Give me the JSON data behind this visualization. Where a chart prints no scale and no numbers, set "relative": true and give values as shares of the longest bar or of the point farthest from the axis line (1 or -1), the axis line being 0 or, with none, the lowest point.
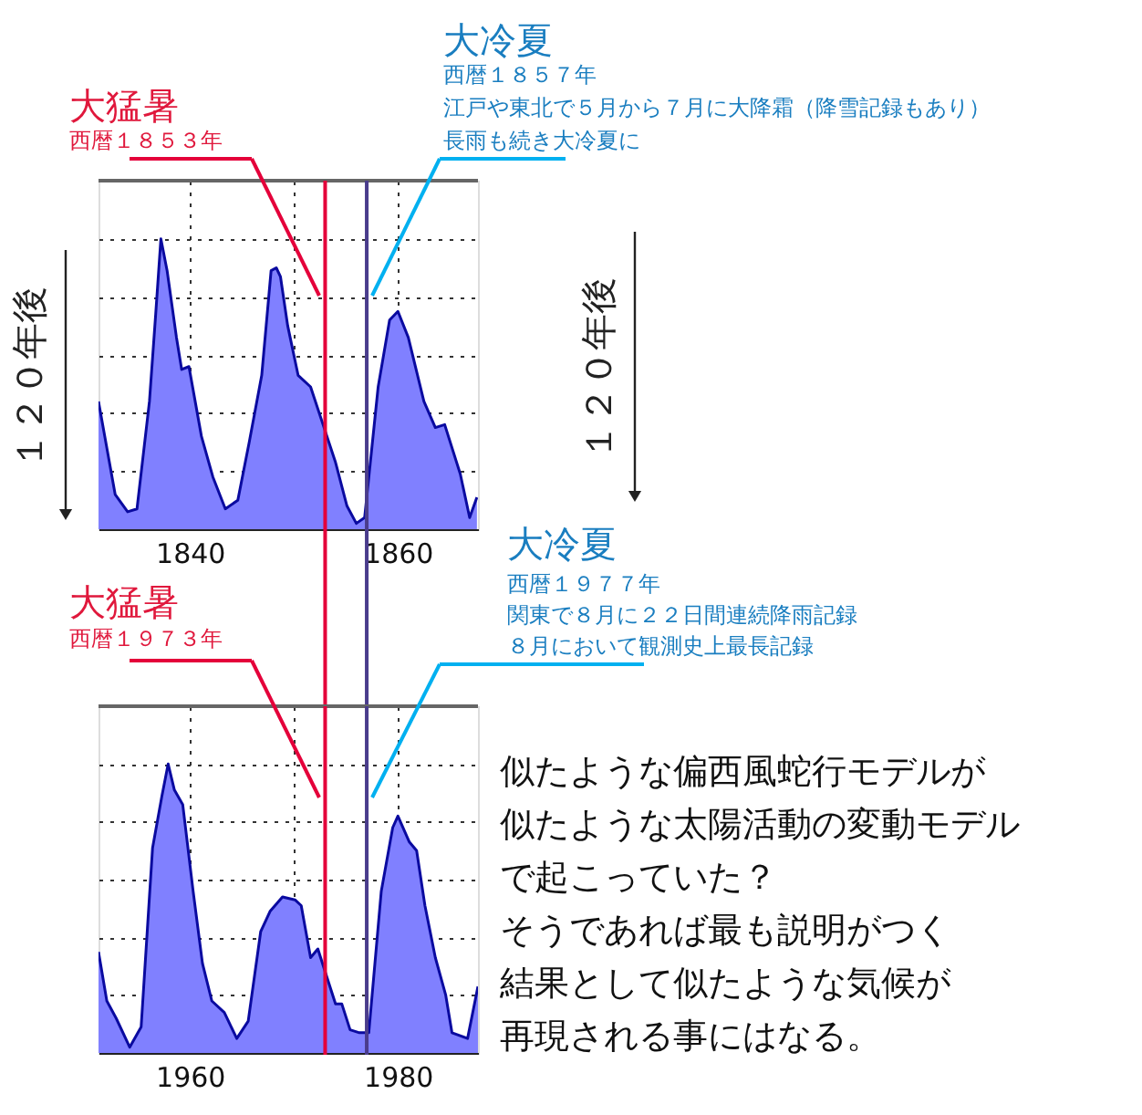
{
  "chart_data": [
    {
      "type": "area",
      "relative": true,
      "grid": true,
      "x": [
        1831.2,
        1832.8,
        1834.0,
        1834.9,
        1836.1,
        1836.7,
        1837.2,
        1837.8,
        1838.7,
        1839.2,
        1839.9,
        1841.1,
        1842.2,
        1843.4,
        1844.6,
        1845.7,
        1846.9,
        1847.8,
        1848.3,
        1848.7,
        1849.4,
        1850.4,
        1851.6,
        1852.8,
        1854.0,
        1855.1,
        1856.0,
        1856.8,
        1858.1,
        1859.2,
        1860.0,
        1861.0,
        1862.5,
        1863.6,
        1864.5,
        1866.0,
        1866.9,
        1867.6
      ],
      "series": [
        {
          "color": "#8080ff",
          "values": [
            0.44,
            0.12,
            0.06,
            0.07,
            0.44,
            0.74,
            1,
            0.89,
            0.66,
            0.55,
            0.56,
            0.32,
            0.18,
            0.07,
            0.1,
            0.3,
            0.53,
            0.89,
            0.9,
            0.87,
            0.7,
            0.53,
            0.49,
            0.36,
            0.23,
            0.08,
            0.02,
            0.04,
            0.49,
            0.72,
            0.75,
            0.66,
            0.44,
            0.35,
            0.36,
            0.19,
            0.04,
            0.11
          ]
        }
      ],
      "xlim": [
        1831.2,
        1867.7
      ],
      "xticks": [
        1840,
        {
          "value": 1850,
          "label": null
        },
        1860
      ],
      "ref_lines": [
        {
          "axis": "x",
          "value": 1853,
          "color": "#e4003a"
        },
        {
          "axis": "x",
          "value": 1857,
          "color": "#4a3c8c"
        }
      ],
      "annotations": [
        "大猛暑",
        "西暦１８５３年",
        "大冷夏",
        "西暦１８５７年",
        "江戸や東北で５月から７月に大降霜（降雪記録もあり）",
        "長雨も続き大冷夏に",
        "１２０年後",
        "１２０年後"
      ]
    },
    {
      "type": "area",
      "relative": true,
      "grid": true,
      "x": [
        1951.2,
        1952.0,
        1952.9,
        1954.2,
        1955.3,
        1956.4,
        1957.3,
        1957.9,
        1958.5,
        1959.3,
        1960.3,
        1961.2,
        1962.1,
        1963.3,
        1964.5,
        1965.6,
        1966.8,
        1967.7,
        1968.9,
        1970.1,
        1970.7,
        1971.6,
        1972.3,
        1973.1,
        1974.0,
        1974.6,
        1975.4,
        1976.3,
        1977.2,
        1978.4,
        1979.5,
        1980.0,
        1981.1,
        1981.8,
        1982.6,
        1983.6,
        1984.6,
        1985.2,
        1986.7,
        1987.7
      ],
      "series": [
        {
          "color": "#8080ff",
          "values": [
            0.35,
            0.18,
            0.12,
            0.02,
            0.09,
            0.71,
            0.89,
            1,
            0.91,
            0.86,
            0.56,
            0.31,
            0.18,
            0.14,
            0.05,
            0.11,
            0.42,
            0.49,
            0.54,
            0.53,
            0.51,
            0.33,
            0.36,
            0.27,
            0.17,
            0.17,
            0.08,
            0.07,
            0.07,
            0.56,
            0.78,
            0.82,
            0.73,
            0.7,
            0.51,
            0.33,
            0.2,
            0.07,
            0.05,
            0.23
          ]
        }
      ],
      "xlim": [
        1951.2,
        1987.7
      ],
      "xticks": [
        1960,
        {
          "value": 1970,
          "label": null
        },
        1980
      ],
      "ref_lines": [
        {
          "axis": "x",
          "value": 1973,
          "color": "#e4003a"
        },
        {
          "axis": "x",
          "value": 1977,
          "color": "#4a3c8c"
        }
      ],
      "annotations": [
        "大猛暑",
        "西暦１９７３年",
        "大冷夏",
        "西暦１９７７年",
        "関東で８月に２２日間連続降雨記録",
        "８月において観測史上最長記録",
        "似たような偏西風蛇行モデルが",
        "似たような太陽活動の変動モデル",
        "で起こっていた？",
        "そうであれば最も説明がつく",
        "結果として似たような気候が",
        "再現される事にはなる。"
      ]
    }
  ]
}
